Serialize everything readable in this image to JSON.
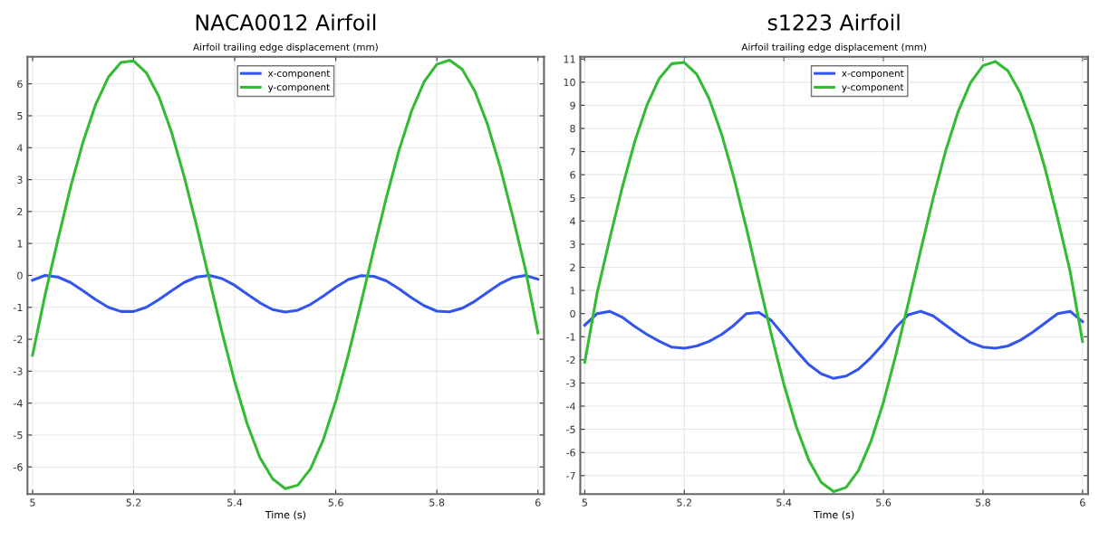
{
  "chart_data": [
    {
      "type": "line",
      "title": "NACA0012 Airfoil",
      "subtitle": "Airfoil trailing edge displacement (mm)",
      "xlabel": "Time (s)",
      "x": [
        5.0,
        5.025,
        5.05,
        5.075,
        5.1,
        5.125,
        5.15,
        5.175,
        5.2,
        5.225,
        5.25,
        5.275,
        5.3,
        5.325,
        5.35,
        5.375,
        5.4,
        5.425,
        5.45,
        5.475,
        5.5,
        5.525,
        5.55,
        5.575,
        5.6,
        5.625,
        5.65,
        5.675,
        5.7,
        5.725,
        5.75,
        5.775,
        5.8,
        5.825,
        5.85,
        5.875,
        5.9,
        5.925,
        5.95,
        5.975,
        6.0
      ],
      "xlim": [
        4.99,
        6.012
      ],
      "xticks": [
        5,
        5.2,
        5.4,
        5.6,
        5.8,
        6
      ],
      "ylim": [
        -6.85,
        6.85
      ],
      "yticks": [
        -6,
        -5,
        -4,
        -3,
        -2,
        -1,
        0,
        1,
        2,
        3,
        4,
        5,
        6
      ],
      "grid": true,
      "legend": "top",
      "line_style": "solid",
      "marker": "none",
      "series": [
        {
          "name": "x-component",
          "color": "#3355ee",
          "values": [
            -0.15,
            0.0,
            -0.05,
            -0.22,
            -0.48,
            -0.76,
            -1.0,
            -1.13,
            -1.13,
            -1.0,
            -0.76,
            -0.48,
            -0.22,
            -0.05,
            0.0,
            -0.1,
            -0.31,
            -0.59,
            -0.86,
            -1.07,
            -1.15,
            -1.09,
            -0.91,
            -0.65,
            -0.37,
            -0.13,
            -0.01,
            -0.03,
            -0.17,
            -0.42,
            -0.7,
            -0.95,
            -1.12,
            -1.14,
            -1.03,
            -0.81,
            -0.53,
            -0.26,
            -0.07,
            0.0,
            -0.12
          ]
        },
        {
          "name": "y-component",
          "color": "#33bb33",
          "values": [
            -2.5,
            -0.6,
            1.1,
            2.75,
            4.18,
            5.36,
            6.21,
            6.67,
            6.72,
            6.35,
            5.6,
            4.49,
            3.1,
            1.53,
            -0.13,
            -1.78,
            -3.33,
            -4.66,
            -5.71,
            -6.37,
            -6.68,
            -6.57,
            -6.06,
            -5.16,
            -3.94,
            -2.48,
            -0.86,
            0.81,
            2.43,
            3.91,
            5.15,
            6.07,
            6.61,
            6.74,
            6.46,
            5.78,
            4.74,
            3.41,
            1.86,
            0.2,
            -1.8
          ]
        }
      ]
    },
    {
      "type": "line",
      "title": "s1223 Airfoil",
      "subtitle": "Airfoil trailing edge displacement (mm)",
      "xlabel": "Time (s)",
      "x": [
        5.0,
        5.025,
        5.05,
        5.075,
        5.1,
        5.125,
        5.15,
        5.175,
        5.2,
        5.225,
        5.25,
        5.275,
        5.3,
        5.325,
        5.35,
        5.375,
        5.4,
        5.425,
        5.45,
        5.475,
        5.5,
        5.525,
        5.55,
        5.575,
        5.6,
        5.625,
        5.65,
        5.675,
        5.7,
        5.725,
        5.75,
        5.775,
        5.8,
        5.825,
        5.85,
        5.875,
        5.9,
        5.925,
        5.95,
        5.975,
        6.0
      ],
      "xlim": [
        4.991,
        6.011
      ],
      "xticks": [
        5,
        5.2,
        5.4,
        5.6,
        5.8,
        6
      ],
      "ylim": [
        -7.8,
        11.1
      ],
      "yticks": [
        -7,
        -6,
        -5,
        -4,
        -3,
        -2,
        -1,
        0,
        1,
        2,
        3,
        4,
        5,
        6,
        7,
        8,
        9,
        10,
        11
      ],
      "grid": true,
      "legend": "top",
      "line_style": "solid",
      "marker": "none",
      "series": [
        {
          "name": "x-component",
          "color": "#3355ee",
          "values": [
            -0.5,
            0.0,
            0.1,
            -0.15,
            -0.55,
            -0.9,
            -1.2,
            -1.45,
            -1.5,
            -1.4,
            -1.2,
            -0.9,
            -0.5,
            0.0,
            0.05,
            -0.3,
            -0.95,
            -1.6,
            -2.2,
            -2.6,
            -2.8,
            -2.7,
            -2.4,
            -1.9,
            -1.3,
            -0.6,
            -0.05,
            0.1,
            -0.1,
            -0.5,
            -0.9,
            -1.25,
            -1.45,
            -1.5,
            -1.4,
            -1.15,
            -0.8,
            -0.4,
            0.0,
            0.1,
            -0.35
          ]
        },
        {
          "name": "y-component",
          "color": "#33bb33",
          "values": [
            -2.1,
            0.9,
            3.22,
            5.42,
            7.4,
            9.01,
            10.17,
            10.8,
            10.85,
            10.34,
            9.28,
            7.75,
            5.84,
            3.67,
            1.37,
            -0.92,
            -3.05,
            -4.89,
            -6.33,
            -7.29,
            -7.69,
            -7.51,
            -6.78,
            -5.52,
            -3.83,
            -1.79,
            0.45,
            2.75,
            4.99,
            7.03,
            8.72,
            9.98,
            10.71,
            10.89,
            10.49,
            9.53,
            8.09,
            6.25,
            4.12,
            1.83,
            -1.2
          ]
        }
      ]
    }
  ]
}
